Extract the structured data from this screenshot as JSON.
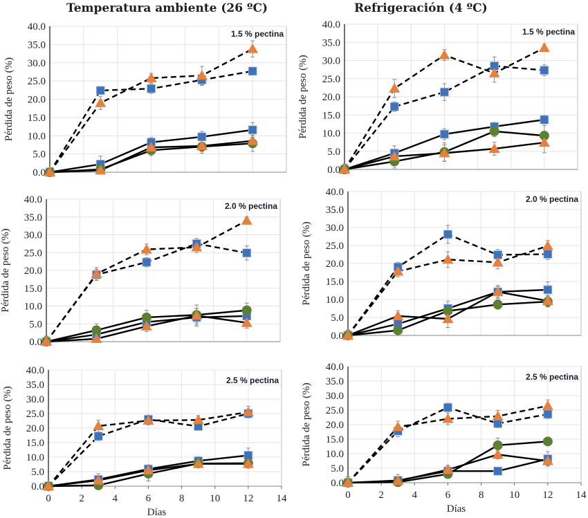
{
  "figure": {
    "column_titles": [
      "Temperatura ambiente (26 ºC)",
      "Refrigeración (4 ºC)"
    ]
  },
  "colors": {
    "blue_square": "#3f72b8",
    "orange_triangle": "#e5803e",
    "green_circle": "#5a8132",
    "line": "#000000",
    "grid": "#e3e3e3",
    "error_bar": "#8c8c8c"
  },
  "chart_data": [
    {
      "type": "line",
      "id": "ambient-1.5",
      "column": "Temperatura ambiente (26 ºC)",
      "annotation": "1.5 % pectina",
      "xlabel": "",
      "ylabel": "Pérdida de peso (%)",
      "xlim": [
        0,
        14
      ],
      "ylim": [
        0,
        40
      ],
      "yticks": [
        "0.0",
        "5.0",
        "10.0",
        "15.0",
        "20.0",
        "25.0",
        "30.0",
        "35.0",
        "40.0"
      ],
      "xticks": [],
      "grid": true,
      "x": [
        0,
        3,
        6,
        9,
        12
      ],
      "series": [
        {
          "name": "blue-square-dashed",
          "marker": "square",
          "color": "blue_square",
          "dash": true,
          "values": [
            0,
            22.4,
            22.9,
            25.3,
            27.7
          ],
          "err": [
            0.5,
            1.0,
            1.3,
            1.5,
            1.0
          ]
        },
        {
          "name": "orange-triangle-dashed",
          "marker": "triangle",
          "color": "orange_triangle",
          "dash": true,
          "values": [
            0,
            19.0,
            25.8,
            26.5,
            33.8
          ],
          "err": [
            0.5,
            1.8,
            1.3,
            2.5,
            2.2
          ]
        },
        {
          "name": "blue-square-solid",
          "marker": "square",
          "color": "blue_square",
          "dash": false,
          "values": [
            0,
            2.2,
            8.2,
            9.7,
            11.6
          ],
          "err": [
            0.5,
            2.2,
            1.3,
            1.5,
            2.0
          ]
        },
        {
          "name": "green-circle-solid",
          "marker": "circle",
          "color": "green_circle",
          "dash": false,
          "values": [
            0,
            0.8,
            6.0,
            7.0,
            7.9
          ],
          "err": [
            0.5,
            0.5,
            1.5,
            1.8,
            2.2
          ]
        },
        {
          "name": "orange-triangle-solid",
          "marker": "triangle",
          "color": "orange_triangle",
          "dash": false,
          "values": [
            0,
            0.5,
            6.8,
            7.2,
            8.6
          ],
          "err": [
            0.5,
            0.5,
            1.5,
            1.5,
            1.5
          ]
        }
      ]
    },
    {
      "type": "line",
      "id": "refrig-1.5",
      "column": "Refrigeración (4 ºC)",
      "annotation": "1.5 % pectina",
      "xlabel": "",
      "ylabel": "Pérdida de peso (%)",
      "xlim": [
        0,
        14
      ],
      "ylim": [
        0,
        40
      ],
      "yticks": [
        "0.0",
        "5.0",
        "10.0",
        "15.0",
        "20.0",
        "25.0",
        "30.0",
        "35.0",
        "40.0"
      ],
      "xticks": [],
      "grid": true,
      "x": [
        0,
        3,
        6,
        9,
        12
      ],
      "series": [
        {
          "name": "blue-square-dashed",
          "marker": "square",
          "color": "blue_square",
          "dash": true,
          "values": [
            0,
            17.3,
            21.3,
            28.5,
            27.3
          ],
          "err": [
            1.5,
            1.3,
            2.3,
            2.5,
            1.5
          ]
        },
        {
          "name": "orange-triangle-dashed",
          "marker": "triangle",
          "color": "orange_triangle",
          "dash": true,
          "values": [
            0,
            22.3,
            31.5,
            26.5,
            33.5
          ],
          "err": [
            1.5,
            2.5,
            1.5,
            2.5,
            1.0
          ]
        },
        {
          "name": "blue-square-solid",
          "marker": "square",
          "color": "blue_square",
          "dash": false,
          "values": [
            0,
            4.5,
            9.7,
            11.8,
            13.7
          ],
          "err": [
            1.5,
            2.0,
            1.5,
            1.2,
            1.2
          ]
        },
        {
          "name": "green-circle-solid",
          "marker": "circle",
          "color": "green_circle",
          "dash": false,
          "values": [
            0,
            2.2,
            4.8,
            10.5,
            9.3
          ],
          "err": [
            1.5,
            1.8,
            2.5,
            1.5,
            2.8
          ]
        },
        {
          "name": "orange-triangle-solid",
          "marker": "triangle",
          "color": "orange_triangle",
          "dash": false,
          "values": [
            0,
            3.6,
            4.5,
            5.7,
            7.4
          ],
          "err": [
            1.5,
            1.5,
            2.3,
            1.8,
            2.8
          ]
        }
      ]
    },
    {
      "type": "line",
      "id": "ambient-2.0",
      "column": "Temperatura ambiente (26 ºC)",
      "annotation": "2.0 % pectina",
      "xlabel": "",
      "ylabel": "Pérdida de peso (%)",
      "xlim": [
        0,
        14
      ],
      "ylim": [
        0,
        40
      ],
      "yticks": [
        "0.0",
        "5.0",
        "10.0",
        "15.0",
        "20.0",
        "25.0",
        "30.0",
        "35.0",
        "40.0"
      ],
      "xticks": [],
      "grid": true,
      "x": [
        0,
        3,
        6,
        9,
        12
      ],
      "series": [
        {
          "name": "blue-square-dashed",
          "marker": "square",
          "color": "blue_square",
          "dash": true,
          "values": [
            0,
            18.8,
            22.3,
            27.5,
            24.9
          ],
          "err": [
            1.5,
            1.5,
            1.3,
            1.5,
            2.0
          ]
        },
        {
          "name": "orange-triangle-dashed",
          "marker": "triangle",
          "color": "orange_triangle",
          "dash": true,
          "values": [
            0,
            19.0,
            25.9,
            26.5,
            34.0
          ],
          "err": [
            1.5,
            1.8,
            1.5,
            1.5,
            1.0
          ]
        },
        {
          "name": "blue-square-solid",
          "marker": "square",
          "color": "blue_square",
          "dash": false,
          "values": [
            0,
            2.0,
            5.5,
            6.8,
            7.2
          ],
          "err": [
            1.5,
            1.5,
            1.5,
            2.5,
            1.5
          ]
        },
        {
          "name": "green-circle-solid",
          "marker": "circle",
          "color": "green_circle",
          "dash": false,
          "values": [
            0,
            3.2,
            6.8,
            7.5,
            8.8
          ],
          "err": [
            1.5,
            1.8,
            2.0,
            2.8,
            2.0
          ]
        },
        {
          "name": "orange-triangle-solid",
          "marker": "triangle",
          "color": "orange_triangle",
          "dash": false,
          "values": [
            0,
            0.8,
            4.3,
            7.3,
            5.3
          ],
          "err": [
            1.5,
            0.8,
            1.5,
            2.0,
            1.5
          ]
        }
      ]
    },
    {
      "type": "line",
      "id": "refrig-2.0",
      "column": "Refrigeración (4 ºC)",
      "annotation": "2.0 % pectina",
      "xlabel": "",
      "ylabel": "Pérdida de peso (%)",
      "xlim": [
        0,
        14
      ],
      "ylim": [
        0,
        40
      ],
      "yticks": [
        "0.0",
        "5.0",
        "10.0",
        "15.0",
        "20.0",
        "25.0",
        "30.0",
        "35.0",
        "40.0"
      ],
      "xticks": [],
      "grid": true,
      "x": [
        0,
        3,
        6,
        9,
        12
      ],
      "series": [
        {
          "name": "blue-square-dashed",
          "marker": "square",
          "color": "blue_square",
          "dash": true,
          "values": [
            0,
            19.0,
            28.1,
            22.4,
            22.6
          ],
          "err": [
            1.5,
            1.3,
            2.5,
            1.5,
            1.5
          ]
        },
        {
          "name": "orange-triangle-dashed",
          "marker": "triangle",
          "color": "orange_triangle",
          "dash": true,
          "values": [
            0,
            17.8,
            21.1,
            20.3,
            24.9
          ],
          "err": [
            1.5,
            1.5,
            2.2,
            1.8,
            1.5
          ]
        },
        {
          "name": "blue-square-solid",
          "marker": "square",
          "color": "blue_square",
          "dash": false,
          "values": [
            0,
            3.2,
            7.5,
            12.1,
            12.7
          ],
          "err": [
            1.5,
            1.5,
            2.0,
            1.5,
            2.2
          ]
        },
        {
          "name": "green-circle-solid",
          "marker": "circle",
          "color": "green_circle",
          "dash": false,
          "values": [
            0,
            1.4,
            6.8,
            8.6,
            9.4
          ],
          "err": [
            1.5,
            0.8,
            1.5,
            1.3,
            1.5
          ]
        },
        {
          "name": "orange-triangle-solid",
          "marker": "triangle",
          "color": "orange_triangle",
          "dash": false,
          "values": [
            0,
            5.4,
            4.6,
            12.1,
            9.6
          ],
          "err": [
            1.5,
            1.5,
            2.4,
            1.8,
            1.5
          ]
        }
      ]
    },
    {
      "type": "line",
      "id": "ambient-2.5",
      "column": "Temperatura ambiente (26 ºC)",
      "annotation": "2.5 % pectina",
      "xlabel": "Días",
      "ylabel": "Pérdida de peso (%)",
      "xlim": [
        0,
        14
      ],
      "ylim": [
        0,
        40
      ],
      "yticks": [
        "0.0",
        "5.0",
        "10.0",
        "15.0",
        "20.0",
        "25.0",
        "30.0",
        "35.0",
        "40.0"
      ],
      "xticks": [
        "0",
        "2",
        "4",
        "6",
        "8",
        "10",
        "12",
        "14"
      ],
      "grid": true,
      "x": [
        0,
        3,
        6,
        9,
        12
      ],
      "series": [
        {
          "name": "blue-square-dashed",
          "marker": "square",
          "color": "blue_square",
          "dash": true,
          "values": [
            0,
            17.2,
            23.0,
            20.6,
            25.0
          ],
          "err": [
            1.0,
            1.5,
            1.5,
            1.0,
            1.5
          ]
        },
        {
          "name": "orange-triangle-dashed",
          "marker": "triangle",
          "color": "orange_triangle",
          "dash": true,
          "values": [
            0,
            20.7,
            22.6,
            22.8,
            25.5
          ],
          "err": [
            1.0,
            2.0,
            1.5,
            1.5,
            2.0
          ]
        },
        {
          "name": "blue-square-solid",
          "marker": "square",
          "color": "blue_square",
          "dash": false,
          "values": [
            0,
            2.3,
            5.9,
            8.7,
            10.6
          ],
          "err": [
            1.0,
            2.0,
            1.5,
            1.5,
            2.5
          ]
        },
        {
          "name": "green-circle-solid",
          "marker": "circle",
          "color": "green_circle",
          "dash": false,
          "values": [
            0,
            0.3,
            4.3,
            7.8,
            7.9
          ],
          "err": [
            1.0,
            0.5,
            2.5,
            1.0,
            1.5
          ]
        },
        {
          "name": "orange-triangle-solid",
          "marker": "triangle",
          "color": "orange_triangle",
          "dash": false,
          "values": [
            0,
            2.0,
            5.5,
            7.7,
            7.7
          ],
          "err": [
            1.0,
            1.5,
            1.5,
            1.0,
            1.5
          ]
        }
      ]
    },
    {
      "type": "line",
      "id": "refrig-2.5",
      "column": "Refrigeración (4 ºC)",
      "annotation": "2.5 % pectina",
      "xlabel": "Días",
      "ylabel": "Pérdida de peso (%)",
      "xlim": [
        0,
        14
      ],
      "ylim": [
        0,
        40
      ],
      "yticks": [
        "0.0",
        "5.0",
        "10.0",
        "15.0",
        "20.0",
        "25.0",
        "30.0",
        "35.0",
        "40.0"
      ],
      "xticks": [
        "0",
        "2",
        "4",
        "6",
        "8",
        "10",
        "12",
        "14"
      ],
      "grid": true,
      "x": [
        0,
        3,
        6,
        9,
        12
      ],
      "series": [
        {
          "name": "blue-square-dashed",
          "marker": "square",
          "color": "blue_square",
          "dash": true,
          "values": [
            0,
            17.8,
            25.9,
            20.4,
            23.6
          ],
          "err": [
            2.0,
            2.0,
            1.5,
            1.5,
            1.5
          ]
        },
        {
          "name": "orange-triangle-dashed",
          "marker": "triangle",
          "color": "orange_triangle",
          "dash": true,
          "values": [
            0,
            19.2,
            22.0,
            22.9,
            26.5
          ],
          "err": [
            2.0,
            2.0,
            2.0,
            2.0,
            2.0
          ]
        },
        {
          "name": "blue-square-solid",
          "marker": "square",
          "color": "blue_square",
          "dash": false,
          "values": [
            0,
            0.8,
            4.0,
            4.0,
            8.2
          ],
          "err": [
            2.0,
            2.0,
            1.5,
            0.5,
            2.5
          ]
        },
        {
          "name": "green-circle-solid",
          "marker": "circle",
          "color": "green_circle",
          "dash": false,
          "values": [
            0,
            0.2,
            3.0,
            12.9,
            14.2
          ],
          "err": [
            2.0,
            1.5,
            1.5,
            2.5,
            0.5
          ]
        },
        {
          "name": "orange-triangle-solid",
          "marker": "triangle",
          "color": "orange_triangle",
          "dash": false,
          "values": [
            0,
            0.6,
            4.5,
            9.7,
            7.5
          ],
          "err": [
            2.0,
            1.5,
            1.5,
            1.5,
            1.5
          ]
        }
      ]
    }
  ]
}
